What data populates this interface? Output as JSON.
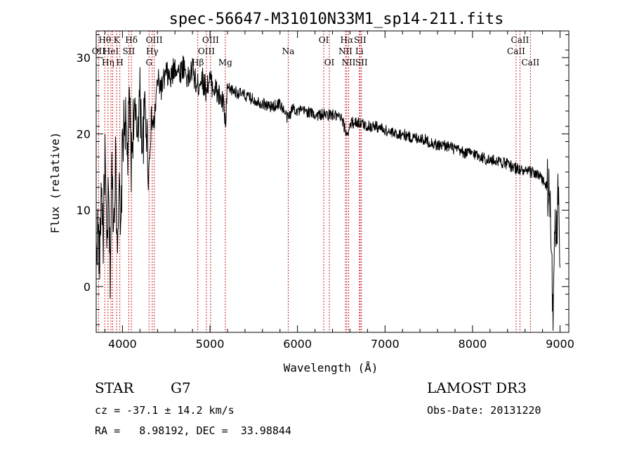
{
  "chart_data": {
    "type": "line",
    "title": "spec-56647-M31010N33M1_sp14-211.fits",
    "xlabel": "Wavelength (Å)",
    "ylabel": "Flux (relative)",
    "xlim": [
      3700,
      9100
    ],
    "ylim": [
      -6,
      33.5
    ],
    "xticks": [
      4000,
      5000,
      6000,
      7000,
      8000,
      9000
    ],
    "yticks": [
      0,
      10,
      20,
      30
    ],
    "line_color": "#000000",
    "marker_color": "#cc2222",
    "lines": [
      {
        "wave": 3727,
        "label": "OII",
        "row": 1
      },
      {
        "wave": 3798,
        "label": "Hθ",
        "row": 0
      },
      {
        "wave": 3835,
        "label": "Hη",
        "row": 2
      },
      {
        "wave": 3869,
        "label": "HeI",
        "row": 1
      },
      {
        "wave": 3889,
        "label": "",
        "row": 0
      },
      {
        "wave": 3934,
        "label": "K",
        "row": 0
      },
      {
        "wave": 3970,
        "label": "H",
        "row": 2
      },
      {
        "wave": 4072,
        "label": "SII",
        "row": 1
      },
      {
        "wave": 4102,
        "label": "Hδ",
        "row": 0
      },
      {
        "wave": 4304,
        "label": "G",
        "row": 2
      },
      {
        "wave": 4340,
        "label": "Hγ",
        "row": 1
      },
      {
        "wave": 4363,
        "label": "OIII",
        "row": 0
      },
      {
        "wave": 4861,
        "label": "Hβ",
        "row": 2
      },
      {
        "wave": 4959,
        "label": "OIII",
        "row": 1
      },
      {
        "wave": 5007,
        "label": "OIII",
        "row": 0
      },
      {
        "wave": 5175,
        "label": "Mg",
        "row": 2
      },
      {
        "wave": 5894,
        "label": "Na",
        "row": 1
      },
      {
        "wave": 6300,
        "label": "OI",
        "row": 0
      },
      {
        "wave": 6364,
        "label": "OI",
        "row": 2
      },
      {
        "wave": 6548,
        "label": "NII",
        "row": 1
      },
      {
        "wave": 6563,
        "label": "Hα",
        "row": 0
      },
      {
        "wave": 6584,
        "label": "NII",
        "row": 2
      },
      {
        "wave": 6707,
        "label": "Li",
        "row": 1
      },
      {
        "wave": 6716,
        "label": "SII",
        "row": 0
      },
      {
        "wave": 6731,
        "label": "SII",
        "row": 2
      },
      {
        "wave": 8498,
        "label": "CaII",
        "row": 1
      },
      {
        "wave": 8542,
        "label": "CaII",
        "row": 0
      },
      {
        "wave": 8662,
        "label": "CaII",
        "row": 2
      }
    ],
    "spectrum_anchor_points": [
      [
        3700,
        4
      ],
      [
        3720,
        8
      ],
      [
        3740,
        3
      ],
      [
        3760,
        14
      ],
      [
        3780,
        6
      ],
      [
        3800,
        18
      ],
      [
        3820,
        4
      ],
      [
        3840,
        12
      ],
      [
        3860,
        2
      ],
      [
        3880,
        15
      ],
      [
        3900,
        8
      ],
      [
        3920,
        17
      ],
      [
        3940,
        6
      ],
      [
        3960,
        14
      ],
      [
        3980,
        5
      ],
      [
        4000,
        19
      ],
      [
        4030,
        22
      ],
      [
        4060,
        17
      ],
      [
        4080,
        25
      ],
      [
        4100,
        16
      ],
      [
        4130,
        23
      ],
      [
        4160,
        20
      ],
      [
        4200,
        25
      ],
      [
        4230,
        18
      ],
      [
        4260,
        24
      ],
      [
        4300,
        15
      ],
      [
        4330,
        22
      ],
      [
        4360,
        21
      ],
      [
        4400,
        27
      ],
      [
        4450,
        26
      ],
      [
        4500,
        28
      ],
      [
        4550,
        27
      ],
      [
        4600,
        29
      ],
      [
        4650,
        28
      ],
      [
        4700,
        29
      ],
      [
        4750,
        27
      ],
      [
        4800,
        28.5
      ],
      [
        4850,
        26
      ],
      [
        4900,
        27.5
      ],
      [
        4950,
        26
      ],
      [
        5000,
        27
      ],
      [
        5050,
        26
      ],
      [
        5100,
        25
      ],
      [
        5150,
        24
      ],
      [
        5180,
        21
      ],
      [
        5200,
        26
      ],
      [
        5300,
        25.5
      ],
      [
        5400,
        25
      ],
      [
        5500,
        24.5
      ],
      [
        5600,
        24
      ],
      [
        5700,
        23.5
      ],
      [
        5800,
        24
      ],
      [
        5890,
        22
      ],
      [
        5950,
        23.5
      ],
      [
        6000,
        23
      ],
      [
        6100,
        23
      ],
      [
        6200,
        22.5
      ],
      [
        6300,
        22.5
      ],
      [
        6400,
        22.5
      ],
      [
        6500,
        22
      ],
      [
        6563,
        20
      ],
      [
        6620,
        21.5
      ],
      [
        6700,
        21.5
      ],
      [
        6800,
        21
      ],
      [
        6900,
        21
      ],
      [
        7000,
        20.5
      ],
      [
        7100,
        20
      ],
      [
        7200,
        20
      ],
      [
        7300,
        19.5
      ],
      [
        7400,
        19.5
      ],
      [
        7500,
        19
      ],
      [
        7600,
        18.5
      ],
      [
        7700,
        18.5
      ],
      [
        7800,
        18
      ],
      [
        7900,
        17.5
      ],
      [
        8000,
        17.5
      ],
      [
        8100,
        17
      ],
      [
        8200,
        16.5
      ],
      [
        8300,
        16.5
      ],
      [
        8400,
        16
      ],
      [
        8500,
        15.5
      ],
      [
        8600,
        15
      ],
      [
        8700,
        15
      ],
      [
        8800,
        14
      ],
      [
        8850,
        13
      ],
      [
        8880,
        12
      ],
      [
        8900,
        5
      ],
      [
        8920,
        -5
      ],
      [
        8940,
        10
      ],
      [
        8960,
        6
      ],
      [
        8980,
        12
      ],
      [
        9000,
        0
      ]
    ]
  },
  "footer": {
    "type_label": "STAR",
    "subclass": "G7",
    "survey": "LAMOST DR3",
    "redshift": "cz = -37.1 ± 14.2 km/s",
    "obs_date": "Obs-Date: 20131220",
    "coords": "RA =   8.98192, DEC =  33.98844"
  }
}
